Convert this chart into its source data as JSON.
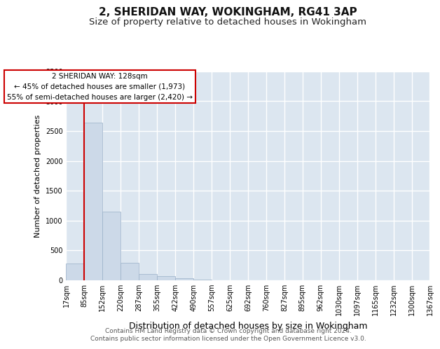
{
  "title1": "2, SHERIDAN WAY, WOKINGHAM, RG41 3AP",
  "title2": "Size of property relative to detached houses in Wokingham",
  "xlabel": "Distribution of detached houses by size in Wokingham",
  "ylabel": "Number of detached properties",
  "bins": [
    "17sqm",
    "85sqm",
    "152sqm",
    "220sqm",
    "287sqm",
    "355sqm",
    "422sqm",
    "490sqm",
    "557sqm",
    "625sqm",
    "692sqm",
    "760sqm",
    "827sqm",
    "895sqm",
    "962sqm",
    "1030sqm",
    "1097sqm",
    "1165sqm",
    "1232sqm",
    "1300sqm",
    "1367sqm"
  ],
  "bar_values": [
    280,
    2640,
    1150,
    285,
    100,
    60,
    35,
    5,
    0,
    0,
    0,
    0,
    0,
    0,
    0,
    0,
    0,
    0,
    0,
    0
  ],
  "bar_color": "#ccd9e8",
  "bar_edge_color": "#9ab0c8",
  "ylim": [
    0,
    3500
  ],
  "yticks": [
    0,
    500,
    1000,
    1500,
    2000,
    2500,
    3000,
    3500
  ],
  "red_line_x": 1.0,
  "annotation_text": "2 SHERIDAN WAY: 128sqm\n← 45% of detached houses are smaller (1,973)\n55% of semi-detached houses are larger (2,420) →",
  "annotation_box_color": "#ffffff",
  "annotation_box_edge": "#cc0000",
  "footer_line1": "Contains HM Land Registry data © Crown copyright and database right 2024.",
  "footer_line2": "Contains public sector information licensed under the Open Government Licence v3.0.",
  "background_color": "#dce6f0",
  "grid_color": "#ffffff",
  "title1_fontsize": 11,
  "title2_fontsize": 9.5,
  "xlabel_fontsize": 9,
  "ylabel_fontsize": 8,
  "tick_fontsize": 7,
  "annot_fontsize": 7.5,
  "footer_fontsize": 6.5
}
